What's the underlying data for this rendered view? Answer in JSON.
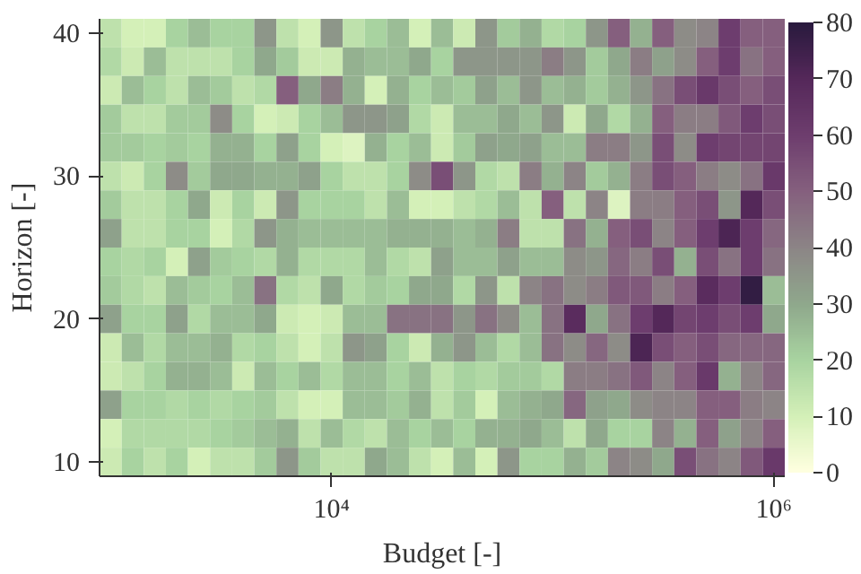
{
  "chart_data": {
    "type": "heatmap",
    "xlabel": "Budget [-]",
    "ylabel": "Horizon [-]",
    "log": "x",
    "x": [
      1000,
      1259,
      1585,
      1995,
      2512,
      3162,
      3981,
      5012,
      6310,
      7943,
      10000,
      12589,
      15849,
      19953,
      25119,
      31623,
      39811,
      50119,
      63096,
      79433,
      100000,
      125893,
      158489,
      199526,
      251189,
      316228,
      398107,
      501187,
      630957,
      794328,
      1000000
    ],
    "y": [
      40,
      38,
      36,
      34,
      32,
      30,
      28,
      26,
      24,
      22,
      20,
      18,
      16,
      14,
      12,
      10
    ],
    "xlim": [
      891,
      1122018
    ],
    "xticks": [
      {
        "value": 10000,
        "label": "10⁴"
      },
      {
        "value": 1000000,
        "label": "10⁶"
      }
    ],
    "ylim": [
      9,
      41
    ],
    "yticks": [
      10,
      20,
      30,
      40
    ],
    "clim": [
      0,
      80
    ],
    "cticks": [
      0,
      10,
      20,
      30,
      40,
      50,
      60,
      70,
      80
    ],
    "grid": false,
    "cells": [
      [
        15,
        10,
        10,
        20,
        25,
        20,
        20,
        35,
        15,
        10,
        35,
        15,
        20,
        25,
        10,
        25,
        12,
        35,
        22,
        28,
        18,
        20,
        35,
        50,
        28,
        50,
        38,
        40,
        60,
        50,
        50
      ],
      [
        18,
        12,
        25,
        15,
        15,
        15,
        20,
        30,
        22,
        12,
        12,
        28,
        25,
        25,
        30,
        20,
        35,
        35,
        35,
        35,
        42,
        35,
        22,
        30,
        42,
        32,
        38,
        50,
        60,
        45,
        50
      ],
      [
        12,
        25,
        20,
        15,
        25,
        22,
        15,
        18,
        50,
        30,
        42,
        28,
        10,
        28,
        20,
        25,
        22,
        32,
        25,
        35,
        25,
        28,
        22,
        28,
        35,
        45,
        55,
        62,
        55,
        50,
        55
      ],
      [
        22,
        15,
        15,
        22,
        22,
        38,
        20,
        10,
        12,
        20,
        25,
        35,
        35,
        32,
        18,
        12,
        25,
        25,
        30,
        25,
        35,
        12,
        30,
        18,
        28,
        50,
        42,
        42,
        52,
        60,
        55
      ],
      [
        22,
        22,
        20,
        22,
        20,
        28,
        28,
        20,
        32,
        20,
        10,
        8,
        28,
        20,
        25,
        12,
        22,
        32,
        30,
        32,
        25,
        25,
        42,
        42,
        35,
        55,
        38,
        60,
        58,
        58,
        58
      ],
      [
        15,
        12,
        20,
        38,
        22,
        30,
        30,
        28,
        28,
        32,
        20,
        15,
        15,
        20,
        38,
        55,
        35,
        18,
        15,
        42,
        28,
        40,
        22,
        28,
        42,
        55,
        50,
        42,
        38,
        45,
        62
      ],
      [
        22,
        15,
        15,
        20,
        30,
        12,
        20,
        12,
        35,
        20,
        20,
        20,
        15,
        25,
        10,
        10,
        15,
        18,
        25,
        15,
        50,
        15,
        40,
        8,
        42,
        42,
        50,
        55,
        35,
        70,
        55
      ],
      [
        32,
        15,
        15,
        20,
        20,
        10,
        18,
        35,
        28,
        25,
        25,
        25,
        25,
        28,
        28,
        28,
        25,
        28,
        42,
        15,
        15,
        45,
        28,
        50,
        55,
        40,
        50,
        60,
        72,
        60,
        48
      ],
      [
        20,
        18,
        20,
        10,
        32,
        22,
        20,
        18,
        28,
        18,
        18,
        18,
        25,
        18,
        15,
        32,
        25,
        25,
        32,
        25,
        25,
        38,
        35,
        48,
        42,
        55,
        28,
        55,
        45,
        60,
        45
      ],
      [
        22,
        18,
        15,
        25,
        22,
        20,
        25,
        45,
        18,
        15,
        30,
        18,
        22,
        20,
        30,
        30,
        18,
        35,
        15,
        40,
        45,
        38,
        42,
        52,
        52,
        42,
        50,
        68,
        60,
        78,
        25
      ],
      [
        32,
        20,
        20,
        32,
        18,
        25,
        25,
        30,
        12,
        10,
        12,
        25,
        25,
        45,
        45,
        45,
        35,
        45,
        38,
        25,
        45,
        68,
        30,
        45,
        60,
        70,
        58,
        60,
        55,
        60,
        30
      ],
      [
        12,
        25,
        18,
        25,
        25,
        28,
        18,
        20,
        15,
        10,
        15,
        35,
        32,
        20,
        12,
        28,
        35,
        25,
        18,
        25,
        45,
        38,
        48,
        38,
        72,
        55,
        50,
        55,
        48,
        48,
        48
      ],
      [
        12,
        15,
        20,
        28,
        28,
        25,
        12,
        25,
        20,
        25,
        18,
        25,
        25,
        20,
        25,
        15,
        20,
        18,
        22,
        22,
        18,
        42,
        42,
        45,
        52,
        40,
        50,
        62,
        28,
        40,
        48
      ],
      [
        32,
        20,
        20,
        18,
        20,
        18,
        20,
        22,
        15,
        10,
        10,
        25,
        25,
        22,
        28,
        15,
        22,
        10,
        25,
        28,
        30,
        48,
        32,
        30,
        38,
        40,
        40,
        50,
        50,
        42,
        40
      ],
      [
        10,
        18,
        18,
        18,
        18,
        20,
        22,
        25,
        28,
        15,
        25,
        18,
        15,
        25,
        20,
        25,
        20,
        28,
        28,
        30,
        25,
        15,
        30,
        20,
        20,
        40,
        28,
        50,
        32,
        40,
        50
      ],
      [
        12,
        20,
        15,
        20,
        10,
        15,
        15,
        22,
        35,
        22,
        15,
        15,
        30,
        25,
        15,
        10,
        25,
        10,
        35,
        20,
        20,
        28,
        22,
        40,
        38,
        30,
        55,
        45,
        40,
        52,
        62
      ]
    ]
  }
}
